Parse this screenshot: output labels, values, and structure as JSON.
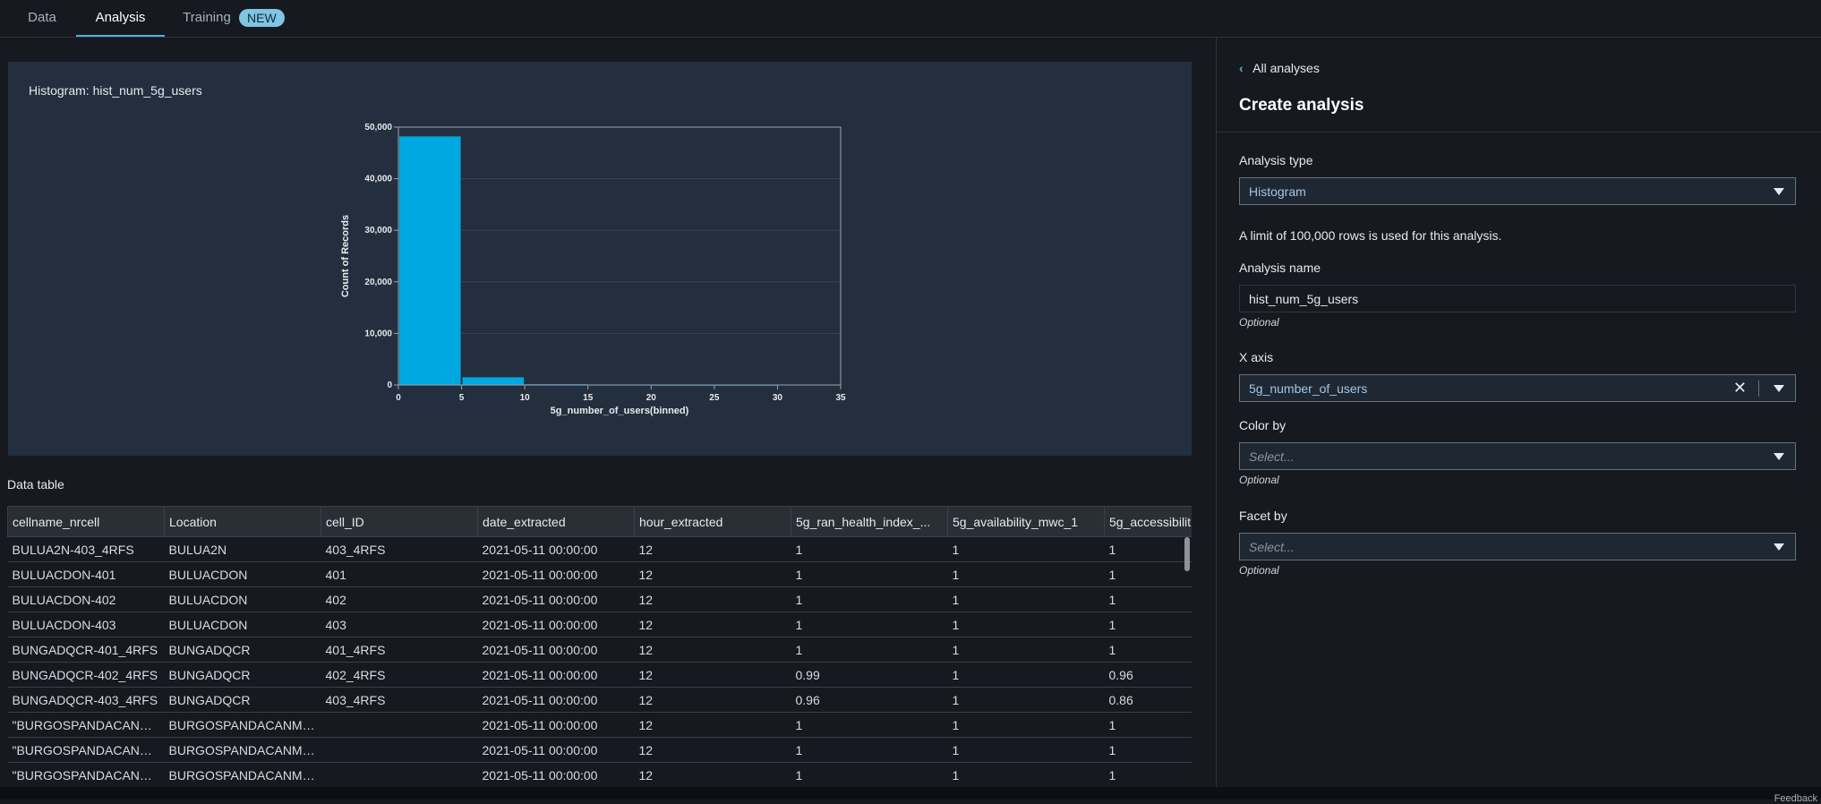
{
  "tabs": [
    {
      "label": "Data"
    },
    {
      "label": "Analysis"
    },
    {
      "label": "Training",
      "badge": "NEW"
    }
  ],
  "chart_panel": {
    "title": "Histogram: hist_num_5g_users"
  },
  "chart_data": {
    "type": "bar",
    "title": "Histogram: hist_num_5g_users",
    "xlabel": "5g_number_of_users(binned)",
    "ylabel": "Count of Records",
    "x_bins": [
      [
        0,
        5
      ],
      [
        5,
        10
      ],
      [
        10,
        15
      ],
      [
        15,
        20
      ],
      [
        20,
        25
      ],
      [
        25,
        30
      ],
      [
        30,
        35
      ]
    ],
    "values": [
      48200,
      1500,
      150,
      30,
      10,
      5,
      0
    ],
    "xlim": [
      0,
      35
    ],
    "ylim": [
      0,
      50000
    ],
    "x_ticks": [
      0,
      5,
      10,
      15,
      20,
      25,
      30,
      35
    ],
    "y_ticks": [
      0,
      10000,
      20000,
      30000,
      40000,
      50000
    ],
    "x_tick_labels": [
      "0",
      "5",
      "10",
      "15",
      "20",
      "25",
      "30",
      "35"
    ],
    "y_tick_labels": [
      "0",
      "10,000",
      "20,000",
      "30,000",
      "40,000",
      "50,000"
    ],
    "bar_color": "#00a8e1",
    "grid": true
  },
  "data_table": {
    "title": "Data table",
    "columns": [
      "cellname_nrcell",
      "Location",
      "cell_ID",
      "date_extracted",
      "hour_extracted",
      "5g_ran_health_index_...",
      "5g_availability_mwc_1",
      "5g_accessibilit"
    ],
    "rows": [
      [
        "BULUA2N-403_4RFS",
        "BULUA2N",
        "403_4RFS",
        "2021-05-11 00:00:00",
        "12",
        "1",
        "1",
        "1"
      ],
      [
        "BULUACDON-401",
        "BULUACDON",
        "401",
        "2021-05-11 00:00:00",
        "12",
        "1",
        "1",
        "1"
      ],
      [
        "BULUACDON-402",
        "BULUACDON",
        "402",
        "2021-05-11 00:00:00",
        "12",
        "1",
        "1",
        "1"
      ],
      [
        "BULUACDON-403",
        "BULUACDON",
        "403",
        "2021-05-11 00:00:00",
        "12",
        "1",
        "1",
        "1"
      ],
      [
        "BUNGADQCR-401_4RFS",
        "BUNGADQCR",
        "401_4RFS",
        "2021-05-11 00:00:00",
        "12",
        "1",
        "1",
        "1"
      ],
      [
        "BUNGADQCR-402_4RFS",
        "BUNGADQCR",
        "402_4RFS",
        "2021-05-11 00:00:00",
        "12",
        "0.99",
        "1",
        "0.96"
      ],
      [
        "BUNGADQCR-403_4RFS",
        "BUNGADQCR",
        "403_4RFS",
        "2021-05-11 00:00:00",
        "12",
        "0.96",
        "1",
        "0.86"
      ],
      [
        "\"BURGOSPANDACANML...",
        "BURGOSPANDACANML...",
        "",
        "2021-05-11 00:00:00",
        "12",
        "1",
        "1",
        "1"
      ],
      [
        "\"BURGOSPANDACANML...",
        "BURGOSPANDACANML...",
        "",
        "2021-05-11 00:00:00",
        "12",
        "1",
        "1",
        "1"
      ],
      [
        "\"BURGOSPANDACANML...",
        "BURGOSPANDACANML...",
        "",
        "2021-05-11 00:00:00",
        "12",
        "1",
        "1",
        "1"
      ]
    ]
  },
  "side_panel": {
    "back_label": "All analyses",
    "heading": "Create analysis",
    "analysis_type_label": "Analysis type",
    "analysis_type_value": "Histogram",
    "limit_note": "A limit of 100,000 rows is used for this analysis.",
    "analysis_name_label": "Analysis name",
    "analysis_name_value": "hist_num_5g_users",
    "optional_hint": "Optional",
    "x_axis_label": "X axis",
    "x_axis_value": "5g_number_of_users",
    "color_by_label": "Color by",
    "color_by_placeholder": "Select...",
    "facet_by_label": "Facet by",
    "facet_by_placeholder": "Select..."
  },
  "colors": {
    "accent": "#44b9d6",
    "badge": "#7fc6e3",
    "bar": "#00a8e1"
  },
  "footer": {
    "text": "Feedback"
  }
}
